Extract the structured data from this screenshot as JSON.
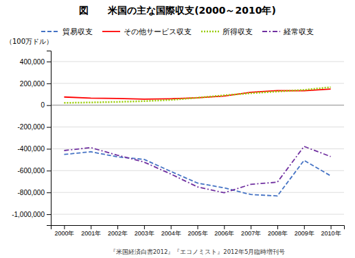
{
  "chart_data": {
    "type": "line",
    "title": "図　　米国の主な国際収支(2000～2010年)",
    "y_label": "（100万ドル）",
    "annotations": [
      "『米国経済白書2012』『エコノミスト』2012年5月臨時増刊号"
    ],
    "categories": [
      "2000年",
      "2001年",
      "2002年",
      "2003年",
      "2004年",
      "2005年",
      "2006年",
      "2007年",
      "2008年",
      "2009年",
      "2010年"
    ],
    "series": [
      {
        "name": "貿易収支",
        "color": "#4472C4",
        "line_style": "dashed",
        "values": [
          -452000,
          -427000,
          -474000,
          -497000,
          -607000,
          -714000,
          -758000,
          -819000,
          -832000,
          -506000,
          -648000
        ]
      },
      {
        "name": "その他サービス収支",
        "color": "#FF0000",
        "line_style": "solid",
        "values": [
          75000,
          65000,
          61000,
          55000,
          59000,
          68000,
          83000,
          118000,
          134000,
          132000,
          148000
        ]
      },
      {
        "name": "所得収支",
        "color": "#99CC00",
        "line_style": "dotted",
        "values": [
          21000,
          25000,
          30000,
          37000,
          48000,
          68000,
          90000,
          110000,
          125000,
          140000,
          165000
        ]
      },
      {
        "name": "経常収支",
        "color": "#7030A0",
        "line_style": "dashdot",
        "values": [
          -416000,
          -389000,
          -459000,
          -522000,
          -631000,
          -749000,
          -803000,
          -726000,
          -706000,
          -378000,
          -471000
        ]
      }
    ],
    "ylim": [
      -1100000,
      500000
    ],
    "yticks": [
      {
        "value": -1000000,
        "label": "-1,000,000"
      },
      {
        "value": -800000,
        "label": "-800,000"
      },
      {
        "value": -600000,
        "label": "-600,000"
      },
      {
        "value": -400000,
        "label": "-400,000"
      },
      {
        "value": -200000,
        "label": "-200,000"
      },
      0,
      {
        "value": 200000,
        "label": "200,000"
      },
      {
        "value": 400000,
        "label": "400,000"
      }
    ],
    "grid": true,
    "legend": "top"
  }
}
